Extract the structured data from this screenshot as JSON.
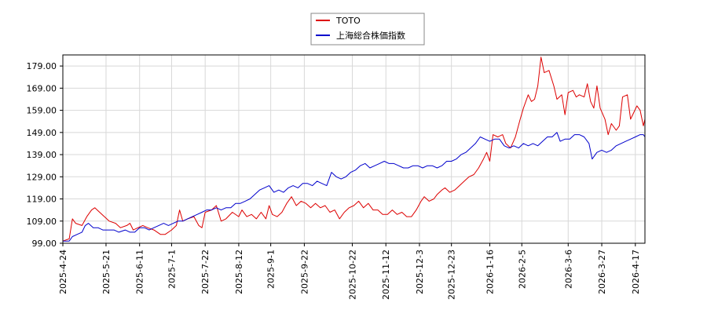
{
  "chart_data": {
    "type": "line",
    "title": "",
    "xlabel": "",
    "ylabel": "",
    "ylim": [
      99.0,
      184.0
    ],
    "grid": true,
    "legend_position": "top-center",
    "y_ticks": [
      "99.00",
      "109.00",
      "119.00",
      "129.00",
      "139.00",
      "149.00",
      "159.00",
      "169.00",
      "179.00"
    ],
    "x_ticks": [
      "2025-4-24",
      "2025-5-21",
      "2025-6-11",
      "2025-7-1",
      "2025-7-22",
      "2025-8-12",
      "2025-9-1",
      "2025-9-22",
      "2025-10-22",
      "2025-11-12",
      "2025-12-3",
      "2025-12-23",
      "2026-1-16",
      "2026-2-5",
      "2026-3-6",
      "2026-3-27",
      "2026-4-17"
    ],
    "x_start": "2025-04-24",
    "x_end": "2026-04-23",
    "series": [
      {
        "name": "TOTO",
        "color": "#dd0000",
        "points": [
          [
            "2025-04-24",
            100
          ],
          [
            "2025-04-28",
            101
          ],
          [
            "2025-04-30",
            110
          ],
          [
            "2025-05-02",
            108
          ],
          [
            "2025-05-06",
            107
          ],
          [
            "2025-05-09",
            111
          ],
          [
            "2025-05-12",
            114
          ],
          [
            "2025-05-14",
            115
          ],
          [
            "2025-05-17",
            113
          ],
          [
            "2025-05-20",
            111
          ],
          [
            "2025-05-23",
            109
          ],
          [
            "2025-05-27",
            108
          ],
          [
            "2025-05-30",
            106
          ],
          [
            "2025-06-03",
            107
          ],
          [
            "2025-06-05",
            108
          ],
          [
            "2025-06-07",
            105
          ],
          [
            "2025-06-10",
            106
          ],
          [
            "2025-06-13",
            107
          ],
          [
            "2025-06-16",
            106
          ],
          [
            "2025-06-20",
            105
          ],
          [
            "2025-06-24",
            103
          ],
          [
            "2025-06-27",
            103
          ],
          [
            "2025-07-01",
            105
          ],
          [
            "2025-07-04",
            107
          ],
          [
            "2025-07-06",
            114
          ],
          [
            "2025-07-08",
            109
          ],
          [
            "2025-07-11",
            110
          ],
          [
            "2025-07-15",
            111
          ],
          [
            "2025-07-18",
            107
          ],
          [
            "2025-07-20",
            106
          ],
          [
            "2025-07-22",
            113
          ],
          [
            "2025-07-26",
            114
          ],
          [
            "2025-07-29",
            116
          ],
          [
            "2025-08-01",
            109
          ],
          [
            "2025-08-04",
            110
          ],
          [
            "2025-08-08",
            113
          ],
          [
            "2025-08-12",
            111
          ],
          [
            "2025-08-14",
            114
          ],
          [
            "2025-08-17",
            111
          ],
          [
            "2025-08-20",
            112
          ],
          [
            "2025-08-23",
            110
          ],
          [
            "2025-08-26",
            113
          ],
          [
            "2025-08-29",
            110
          ],
          [
            "2025-08-31",
            116
          ],
          [
            "2025-09-02",
            112
          ],
          [
            "2025-09-05",
            111
          ],
          [
            "2025-09-08",
            113
          ],
          [
            "2025-09-11",
            117
          ],
          [
            "2025-09-14",
            120
          ],
          [
            "2025-09-17",
            116
          ],
          [
            "2025-09-20",
            118
          ],
          [
            "2025-09-23",
            117
          ],
          [
            "2025-09-26",
            115
          ],
          [
            "2025-09-29",
            117
          ],
          [
            "2025-10-02",
            115
          ],
          [
            "2025-10-05",
            116
          ],
          [
            "2025-10-08",
            113
          ],
          [
            "2025-10-11",
            114
          ],
          [
            "2025-10-14",
            110
          ],
          [
            "2025-10-17",
            113
          ],
          [
            "2025-10-20",
            115
          ],
          [
            "2025-10-23",
            116
          ],
          [
            "2025-10-26",
            118
          ],
          [
            "2025-10-29",
            115
          ],
          [
            "2025-11-01",
            117
          ],
          [
            "2025-11-04",
            114
          ],
          [
            "2025-11-07",
            114
          ],
          [
            "2025-11-10",
            112
          ],
          [
            "2025-11-13",
            112
          ],
          [
            "2025-11-16",
            114
          ],
          [
            "2025-11-19",
            112
          ],
          [
            "2025-11-22",
            113
          ],
          [
            "2025-11-25",
            111
          ],
          [
            "2025-11-28",
            111
          ],
          [
            "2025-12-01",
            114
          ],
          [
            "2025-12-04",
            118
          ],
          [
            "2025-12-06",
            120
          ],
          [
            "2025-12-09",
            118
          ],
          [
            "2025-12-12",
            119
          ],
          [
            "2025-12-14",
            121
          ],
          [
            "2025-12-17",
            123
          ],
          [
            "2025-12-19",
            124
          ],
          [
            "2025-12-22",
            122
          ],
          [
            "2025-12-25",
            123
          ],
          [
            "2025-12-28",
            125
          ],
          [
            "2025-12-31",
            127
          ],
          [
            "2026-01-03",
            129
          ],
          [
            "2026-01-06",
            130
          ],
          [
            "2026-01-09",
            133
          ],
          [
            "2026-01-12",
            137
          ],
          [
            "2026-01-14",
            140
          ],
          [
            "2026-01-16",
            136
          ],
          [
            "2026-01-18",
            148
          ],
          [
            "2026-01-21",
            147
          ],
          [
            "2026-01-24",
            148
          ],
          [
            "2026-01-26",
            144
          ],
          [
            "2026-01-29",
            142
          ],
          [
            "2026-02-01",
            147
          ],
          [
            "2026-02-04",
            155
          ],
          [
            "2026-02-06",
            160
          ],
          [
            "2026-02-09",
            166
          ],
          [
            "2026-02-11",
            163
          ],
          [
            "2026-02-13",
            164
          ],
          [
            "2026-02-15",
            170
          ],
          [
            "2026-02-17",
            183
          ],
          [
            "2026-02-19",
            176
          ],
          [
            "2026-02-22",
            177
          ],
          [
            "2026-02-25",
            170
          ],
          [
            "2026-02-27",
            164
          ],
          [
            "2026-03-02",
            166
          ],
          [
            "2026-03-04",
            157
          ],
          [
            "2026-03-06",
            167
          ],
          [
            "2026-03-09",
            168
          ],
          [
            "2026-03-11",
            165
          ],
          [
            "2026-03-13",
            166
          ],
          [
            "2026-03-16",
            165
          ],
          [
            "2026-03-18",
            171
          ],
          [
            "2026-03-20",
            163
          ],
          [
            "2026-03-22",
            160
          ],
          [
            "2026-03-24",
            170
          ],
          [
            "2026-03-26",
            160
          ],
          [
            "2026-03-29",
            155
          ],
          [
            "2026-03-31",
            148
          ],
          [
            "2026-04-02",
            153
          ],
          [
            "2026-04-05",
            150
          ],
          [
            "2026-04-07",
            152
          ],
          [
            "2026-04-09",
            165
          ],
          [
            "2026-04-12",
            166
          ],
          [
            "2026-04-14",
            155
          ],
          [
            "2026-04-16",
            158
          ],
          [
            "2026-04-18",
            161
          ],
          [
            "2026-04-20",
            159
          ],
          [
            "2026-04-22",
            152
          ],
          [
            "2026-04-23",
            155
          ]
        ]
      },
      {
        "name": "上海総合株価指数",
        "color": "#0000cc",
        "points": [
          [
            "2025-04-24",
            100
          ],
          [
            "2025-04-28",
            100
          ],
          [
            "2025-04-30",
            102
          ],
          [
            "2025-05-03",
            103
          ],
          [
            "2025-05-06",
            104
          ],
          [
            "2025-05-08",
            107
          ],
          [
            "2025-05-10",
            108
          ],
          [
            "2025-05-13",
            106
          ],
          [
            "2025-05-16",
            106
          ],
          [
            "2025-05-19",
            105
          ],
          [
            "2025-05-22",
            105
          ],
          [
            "2025-05-26",
            105
          ],
          [
            "2025-05-29",
            104
          ],
          [
            "2025-06-02",
            105
          ],
          [
            "2025-06-05",
            104
          ],
          [
            "2025-06-08",
            104
          ],
          [
            "2025-06-11",
            106
          ],
          [
            "2025-06-14",
            106
          ],
          [
            "2025-06-17",
            105
          ],
          [
            "2025-06-20",
            106
          ],
          [
            "2025-06-23",
            107
          ],
          [
            "2025-06-26",
            108
          ],
          [
            "2025-06-29",
            107
          ],
          [
            "2025-07-02",
            108
          ],
          [
            "2025-07-05",
            109
          ],
          [
            "2025-07-08",
            109
          ],
          [
            "2025-07-11",
            110
          ],
          [
            "2025-07-14",
            111
          ],
          [
            "2025-07-17",
            112
          ],
          [
            "2025-07-20",
            113
          ],
          [
            "2025-07-23",
            114
          ],
          [
            "2025-07-26",
            114
          ],
          [
            "2025-07-29",
            115
          ],
          [
            "2025-08-01",
            114
          ],
          [
            "2025-08-04",
            115
          ],
          [
            "2025-08-07",
            115
          ],
          [
            "2025-08-10",
            117
          ],
          [
            "2025-08-13",
            117
          ],
          [
            "2025-08-16",
            118
          ],
          [
            "2025-08-19",
            119
          ],
          [
            "2025-08-22",
            121
          ],
          [
            "2025-08-25",
            123
          ],
          [
            "2025-08-28",
            124
          ],
          [
            "2025-08-31",
            125
          ],
          [
            "2025-09-03",
            122
          ],
          [
            "2025-09-06",
            123
          ],
          [
            "2025-09-09",
            122
          ],
          [
            "2025-09-12",
            124
          ],
          [
            "2025-09-15",
            125
          ],
          [
            "2025-09-18",
            124
          ],
          [
            "2025-09-21",
            126
          ],
          [
            "2025-09-24",
            126
          ],
          [
            "2025-09-27",
            125
          ],
          [
            "2025-09-30",
            127
          ],
          [
            "2025-10-03",
            126
          ],
          [
            "2025-10-06",
            125
          ],
          [
            "2025-10-09",
            131
          ],
          [
            "2025-10-12",
            129
          ],
          [
            "2025-10-15",
            128
          ],
          [
            "2025-10-18",
            129
          ],
          [
            "2025-10-21",
            131
          ],
          [
            "2025-10-24",
            132
          ],
          [
            "2025-10-27",
            134
          ],
          [
            "2025-10-30",
            135
          ],
          [
            "2025-11-02",
            133
          ],
          [
            "2025-11-05",
            134
          ],
          [
            "2025-11-08",
            135
          ],
          [
            "2025-11-11",
            136
          ],
          [
            "2025-11-14",
            135
          ],
          [
            "2025-11-17",
            135
          ],
          [
            "2025-11-20",
            134
          ],
          [
            "2025-11-23",
            133
          ],
          [
            "2025-11-26",
            133
          ],
          [
            "2025-11-29",
            134
          ],
          [
            "2025-12-02",
            134
          ],
          [
            "2025-12-05",
            133
          ],
          [
            "2025-12-08",
            134
          ],
          [
            "2025-12-11",
            134
          ],
          [
            "2025-12-14",
            133
          ],
          [
            "2025-12-17",
            134
          ],
          [
            "2025-12-20",
            136
          ],
          [
            "2025-12-23",
            136
          ],
          [
            "2025-12-26",
            137
          ],
          [
            "2025-12-29",
            139
          ],
          [
            "2026-01-01",
            140
          ],
          [
            "2026-01-04",
            142
          ],
          [
            "2026-01-07",
            144
          ],
          [
            "2026-01-10",
            147
          ],
          [
            "2026-01-13",
            146
          ],
          [
            "2026-01-16",
            145
          ],
          [
            "2026-01-19",
            146
          ],
          [
            "2026-01-22",
            146
          ],
          [
            "2026-01-25",
            143
          ],
          [
            "2026-01-28",
            142
          ],
          [
            "2026-01-31",
            143
          ],
          [
            "2026-02-03",
            142
          ],
          [
            "2026-02-06",
            144
          ],
          [
            "2026-02-09",
            143
          ],
          [
            "2026-02-12",
            144
          ],
          [
            "2026-02-15",
            143
          ],
          [
            "2026-02-18",
            145
          ],
          [
            "2026-02-21",
            147
          ],
          [
            "2026-02-24",
            147
          ],
          [
            "2026-02-27",
            149
          ],
          [
            "2026-03-01",
            145
          ],
          [
            "2026-03-04",
            146
          ],
          [
            "2026-03-07",
            146
          ],
          [
            "2026-03-10",
            148
          ],
          [
            "2026-03-13",
            148
          ],
          [
            "2026-03-16",
            147
          ],
          [
            "2026-03-19",
            144
          ],
          [
            "2026-03-21",
            137
          ],
          [
            "2026-03-24",
            140
          ],
          [
            "2026-03-27",
            141
          ],
          [
            "2026-03-30",
            140
          ],
          [
            "2026-04-02",
            141
          ],
          [
            "2026-04-05",
            143
          ],
          [
            "2026-04-08",
            144
          ],
          [
            "2026-04-11",
            145
          ],
          [
            "2026-04-14",
            146
          ],
          [
            "2026-04-17",
            147
          ],
          [
            "2026-04-20",
            148
          ],
          [
            "2026-04-22",
            148
          ],
          [
            "2026-04-23",
            147
          ]
        ]
      }
    ]
  }
}
